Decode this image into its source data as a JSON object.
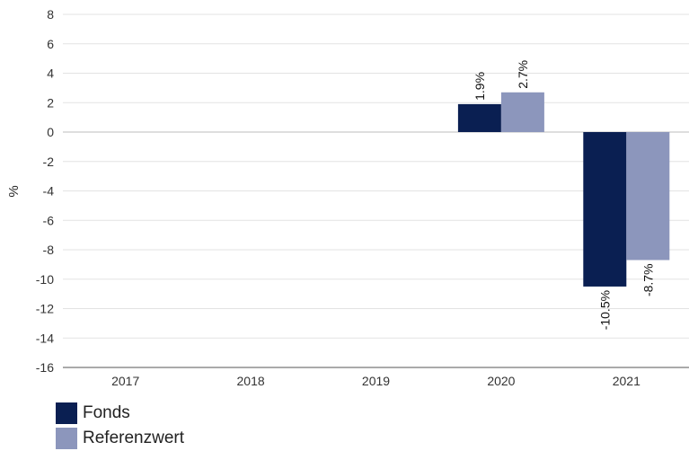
{
  "chart_data": {
    "type": "bar",
    "categories": [
      "2017",
      "2018",
      "2019",
      "2020",
      "2021"
    ],
    "series": [
      {
        "name": "Fonds",
        "color": "#0a1f52",
        "values": [
          null,
          null,
          null,
          1.9,
          -10.5
        ],
        "labels": [
          "",
          "",
          "",
          "1.9%",
          "-10.5%"
        ]
      },
      {
        "name": "Referenzwert",
        "color": "#8c96bc",
        "values": [
          null,
          null,
          null,
          2.7,
          -8.7
        ],
        "labels": [
          "",
          "",
          "",
          "2.7%",
          "-8.7%"
        ]
      }
    ],
    "ylabel": "%",
    "xlabel": "",
    "ylim": [
      -16,
      8
    ],
    "yticks": [
      8,
      6,
      4,
      2,
      0,
      -2,
      -4,
      -6,
      -8,
      -10,
      -12,
      -14,
      -16
    ],
    "grid": true,
    "legend_position": "bottom-left"
  }
}
